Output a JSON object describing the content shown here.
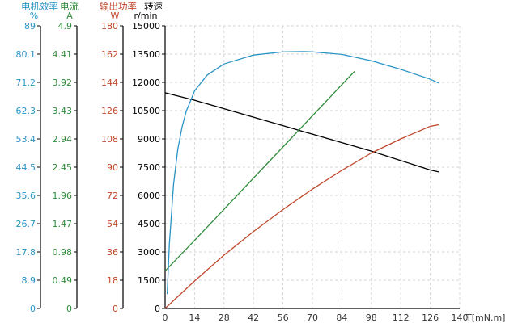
{
  "chart_data": {
    "type": "line",
    "xlabel": "T[mN.m]",
    "x_ticks": [
      "0",
      "14",
      "28",
      "42",
      "56",
      "70",
      "84",
      "98",
      "112",
      "126",
      "140"
    ],
    "xlim": [
      0,
      140
    ],
    "grid": true,
    "axes": [
      {
        "id": "efficiency",
        "title": "电机效率",
        "unit": "%",
        "color": "#2a94c6",
        "ylim": [
          0,
          89
        ],
        "ticks": [
          "89",
          "80.1",
          "71.2",
          "62.3",
          "53.4",
          "44.5",
          "35.6",
          "26.7",
          "17.8",
          "8.9",
          "0"
        ]
      },
      {
        "id": "current",
        "title": "电流",
        "unit": "A",
        "color": "#2e8b3a",
        "ylim": [
          0,
          4.9
        ],
        "ticks": [
          "4.9",
          "4.41",
          "3.92",
          "3.43",
          "2.94",
          "2.45",
          "1.96",
          "1.47",
          "0.98",
          "0.49",
          "0"
        ]
      },
      {
        "id": "power",
        "title": "输出功率",
        "unit": "W",
        "color": "#c0472b",
        "ylim": [
          0,
          180
        ],
        "ticks": [
          "180",
          "162",
          "144",
          "126",
          "108",
          "90",
          "72",
          "54",
          "36",
          "18",
          "0"
        ]
      },
      {
        "id": "speed",
        "title": "转速",
        "unit": "r/min",
        "color": "#000000",
        "ylim": [
          0,
          15000
        ],
        "ticks": [
          "15000",
          "13500",
          "12000",
          "10500",
          "9000",
          "7500",
          "6000",
          "4500",
          "3000",
          "1500",
          "0"
        ]
      }
    ],
    "series": [
      {
        "axis": "speed",
        "color": "#000000",
        "x": [
          0,
          14,
          28,
          42,
          56,
          70,
          84,
          98,
          112,
          126,
          130
        ],
        "y": [
          11450,
          11050,
          10600,
          10150,
          9700,
          9250,
          8800,
          8350,
          7850,
          7350,
          7250
        ]
      },
      {
        "axis": "current",
        "color": "#2e8b3a",
        "x": [
          0,
          14,
          28,
          42,
          56,
          70,
          84,
          90
        ],
        "y": [
          0.65,
          1.18,
          1.72,
          2.26,
          2.8,
          3.34,
          3.88,
          4.11
        ]
      },
      {
        "axis": "efficiency",
        "color": "#2a94c6",
        "x": [
          1,
          2,
          4,
          6,
          8,
          10,
          14,
          20,
          28,
          42,
          56,
          66,
          70,
          84,
          98,
          112,
          126,
          130
        ],
        "y": [
          4.5,
          20,
          39,
          50,
          57,
          62,
          68.5,
          73.5,
          77,
          79.8,
          80.8,
          80.9,
          80.8,
          80,
          78,
          75.3,
          72.2,
          71
        ]
      },
      {
        "axis": "power",
        "color": "#c0472b",
        "x": [
          0,
          14,
          28,
          42,
          56,
          70,
          84,
          98,
          112,
          126,
          130
        ],
        "y": [
          0,
          17.5,
          34,
          49,
          63,
          76,
          88,
          99,
          108,
          116,
          117
        ]
      }
    ]
  }
}
